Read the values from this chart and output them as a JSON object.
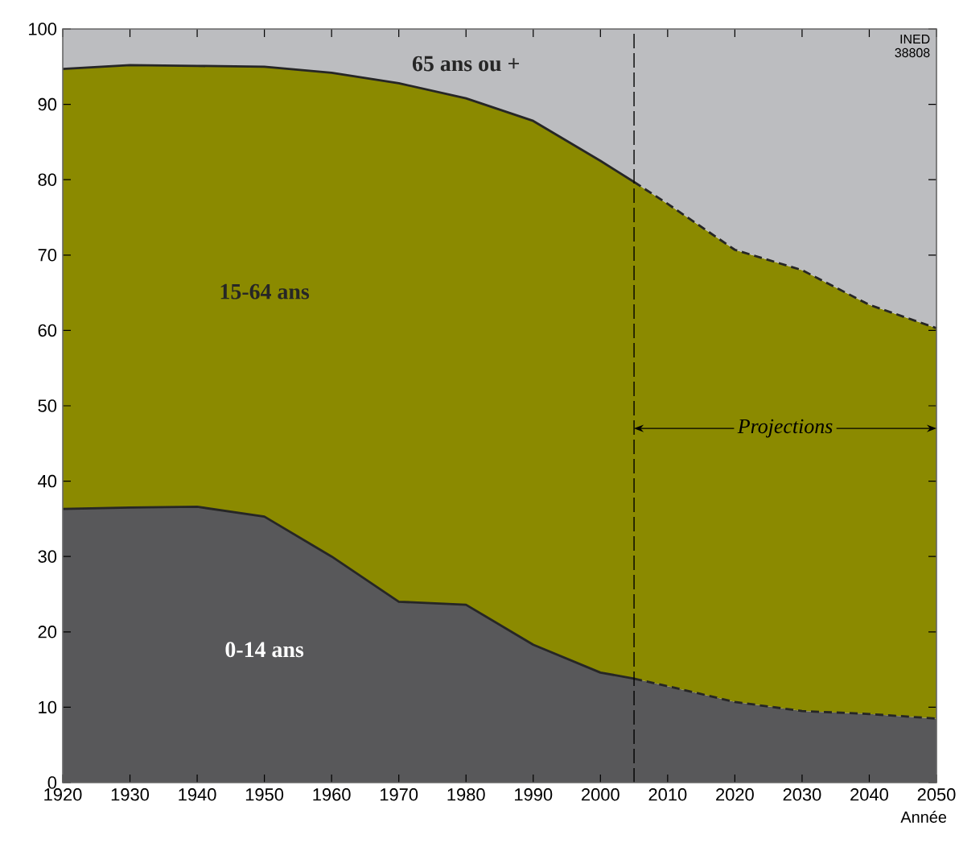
{
  "chart_data": {
    "type": "area",
    "stacked": true,
    "xlabel": "Année",
    "xlim": [
      1920,
      2050
    ],
    "ylim": [
      0,
      100
    ],
    "xticks": [
      1920,
      1930,
      1940,
      1950,
      1960,
      1970,
      1980,
      1990,
      2000,
      2010,
      2020,
      2030,
      2040,
      2050
    ],
    "yticks": [
      0,
      10,
      20,
      30,
      40,
      50,
      60,
      70,
      80,
      90,
      100
    ],
    "x": [
      1920,
      1930,
      1940,
      1950,
      1960,
      1970,
      1980,
      1990,
      2000,
      2005,
      2010,
      2020,
      2030,
      2040,
      2050
    ],
    "series": [
      {
        "name": "0-14 ans",
        "color": "#58585a",
        "line_style": "solid",
        "values": [
          36.3,
          36.5,
          36.6,
          35.3,
          30.0,
          24.0,
          23.6,
          18.3,
          14.6,
          13.8,
          12.8,
          10.7,
          9.5,
          9.1,
          8.5
        ]
      },
      {
        "name": "15-64 ans",
        "color": "#8b8a00",
        "line_style": "solid",
        "values": [
          58.4,
          58.7,
          58.5,
          59.7,
          64.2,
          68.8,
          67.2,
          69.5,
          67.9,
          65.9,
          64.0,
          60.0,
          58.5,
          54.3,
          51.8
        ]
      },
      {
        "name": "65 ans ou +",
        "color": "#bcbdc0",
        "values": [
          5.3,
          4.8,
          4.9,
          5.0,
          5.8,
          7.2,
          9.2,
          12.2,
          17.5,
          20.3,
          23.2,
          29.3,
          32.0,
          36.6,
          39.7
        ]
      }
    ],
    "ref_lines": [
      {
        "axis": "x",
        "value": 2005,
        "line_style": "dashed",
        "label": "Projections"
      }
    ],
    "annotations": [
      "INED 38808"
    ]
  }
}
